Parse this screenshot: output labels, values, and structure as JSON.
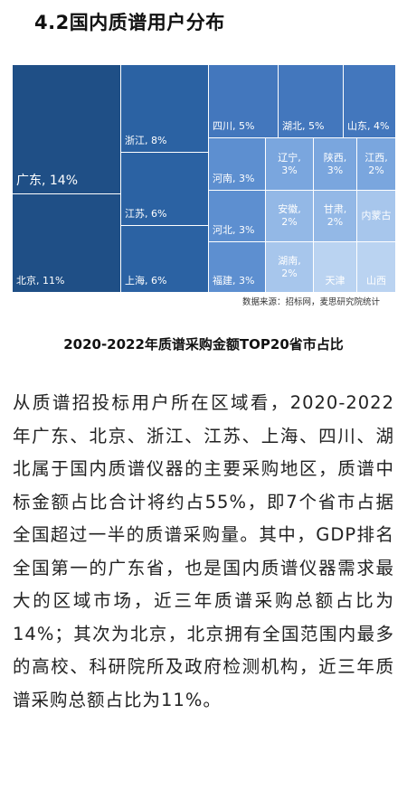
{
  "section_title": "4.2国内质谱用户分布",
  "source_note": "数据来源：招标网，麦思研究院统计",
  "chart_data": {
    "type": "treemap",
    "title": "2020-2022年质谱采购金额TOP20省市占比",
    "items": [
      {
        "name": "广东",
        "value": 14,
        "label": "广东, 14%"
      },
      {
        "name": "北京",
        "value": 11,
        "label": "北京, 11%"
      },
      {
        "name": "浙江",
        "value": 8,
        "label": "浙江, 8%"
      },
      {
        "name": "江苏",
        "value": 6,
        "label": "江苏, 6%"
      },
      {
        "name": "上海",
        "value": 6,
        "label": "上海, 6%"
      },
      {
        "name": "四川",
        "value": 5,
        "label": "四川, 5%"
      },
      {
        "name": "湖北",
        "value": 5,
        "label": "湖北, 5%"
      },
      {
        "name": "山东",
        "value": 4,
        "label": "山东, 4%"
      },
      {
        "name": "河南",
        "value": 3,
        "label": "河南, 3%"
      },
      {
        "name": "河北",
        "value": 3,
        "label": "河北, 3%"
      },
      {
        "name": "福建",
        "value": 3,
        "label": "福建, 3%"
      },
      {
        "name": "辽宁",
        "value": 3,
        "label": "辽宁, 3%"
      },
      {
        "name": "陕西",
        "value": 3,
        "label": "陕西, 3%"
      },
      {
        "name": "江西",
        "value": 2,
        "label": "江西, 2%"
      },
      {
        "name": "安徽",
        "value": 2,
        "label": "安徽, 2%"
      },
      {
        "name": "甘肃",
        "value": 2,
        "label": "甘肃, 2%"
      },
      {
        "name": "内蒙古",
        "value": null,
        "label": "内蒙古"
      },
      {
        "name": "湖南",
        "value": 2,
        "label": "湖南, 2%"
      },
      {
        "name": "天津",
        "value": null,
        "label": "天津"
      },
      {
        "name": "山西",
        "value": null,
        "label": "山西"
      }
    ]
  },
  "paragraph": "从质谱招投标用户所在区域看，2020-2022年广东、北京、浙江、江苏、上海、四川、湖北属于国内质谱仪器的主要采购地区，质谱中标金额占比合计将约占55%，即7个省市占据全国超过一半的质谱采购量。其中，GDP排名全国第一的广东省，也是国内质谱仪器需求最大的区域市场，近三年质谱采购总额占比为14%；其次为北京，北京拥有全国范围内最多的高校、科研院所及政府检测机构，近三年质谱采购总额占比为11%。"
}
